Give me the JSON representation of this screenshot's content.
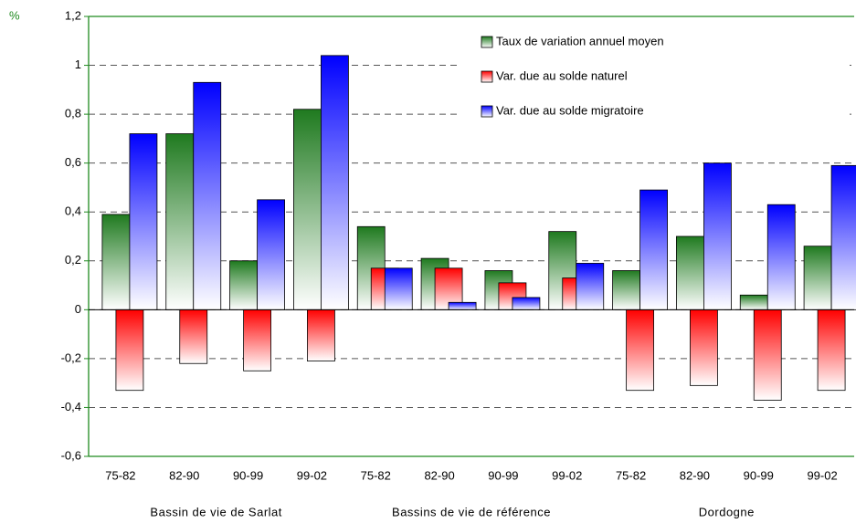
{
  "chart_data": {
    "type": "bar",
    "ylabel": "%",
    "categories": [
      "75-82",
      "82-90",
      "90-99",
      "99-02",
      "75-82",
      "82-90",
      "90-99",
      "99-02",
      "75-82",
      "82-90",
      "90-99",
      "99-02"
    ],
    "groups": [
      "Bassin de vie de Sarlat",
      "Bassins de vie de référence",
      "Dordogne"
    ],
    "series": [
      {
        "name": "Taux de variation annuel moyen",
        "color": "#1f7a1f",
        "values": [
          0.39,
          0.72,
          0.2,
          0.82,
          0.34,
          0.21,
          0.16,
          0.32,
          0.16,
          0.3,
          0.06,
          0.26
        ]
      },
      {
        "name": "Var. due au solde naturel",
        "color": "#ff0000",
        "values": [
          -0.33,
          -0.22,
          -0.25,
          -0.21,
          0.17,
          0.17,
          0.11,
          0.13,
          -0.33,
          -0.31,
          -0.37,
          -0.33
        ]
      },
      {
        "name": "Var. due au solde migratoire",
        "color": "#0000ff",
        "values": [
          0.72,
          0.93,
          0.45,
          1.04,
          0.17,
          0.03,
          0.05,
          0.19,
          0.49,
          0.6,
          0.43,
          0.59
        ]
      }
    ],
    "ylim": [
      -0.6,
      1.2
    ],
    "yticks": [
      {
        "value": 1.2,
        "label": "1,2"
      },
      1,
      {
        "value": 0.8,
        "label": "0,8"
      },
      {
        "value": 0.6,
        "label": "0,6"
      },
      {
        "value": 0.4,
        "label": "0,4"
      },
      {
        "value": 0.2,
        "label": "0,2"
      },
      0,
      {
        "value": -0.2,
        "label": "-0,2"
      },
      {
        "value": -0.4,
        "label": "-0,4"
      },
      {
        "value": -0.6,
        "label": "-0,6"
      }
    ],
    "grid": true,
    "legend": "upper right"
  }
}
